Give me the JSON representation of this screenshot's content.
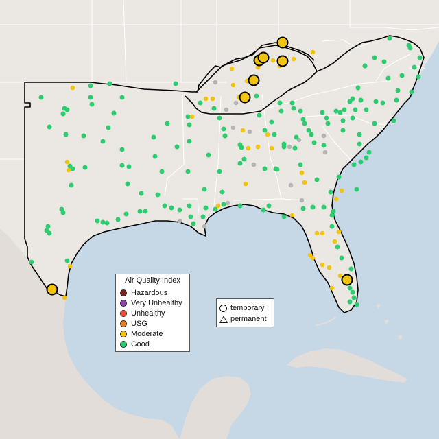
{
  "colors": {
    "water": "#c6d7e6",
    "land": "#ebe7e3",
    "land_dark": "#dcd6d0",
    "border": "#ffffff",
    "region_outline": "#000000",
    "good": "#2ecc71",
    "moderate": "#f1c40f",
    "usg": "#e67e22",
    "unhealthy": "#e74c3c",
    "very_unhealthy": "#8e44ad",
    "hazardous": "#7b241c",
    "no_data": "#b5b5b5"
  },
  "legend_aqi": {
    "title": "Air Quality Index",
    "items": [
      {
        "label": "Hazardous",
        "color": "#7b241c"
      },
      {
        "label": "Very Unhealthy",
        "color": "#8e44ad"
      },
      {
        "label": "Unhealthy",
        "color": "#e74c3c"
      },
      {
        "label": "USG",
        "color": "#e67e22"
      },
      {
        "label": "Moderate",
        "color": "#f1c40f"
      },
      {
        "label": "Good",
        "color": "#2ecc71"
      }
    ]
  },
  "legend_type": {
    "items": [
      {
        "label": "temporary",
        "shape": "circle-icon"
      },
      {
        "label": "permanent",
        "shape": "triangle-icon"
      }
    ]
  }
}
